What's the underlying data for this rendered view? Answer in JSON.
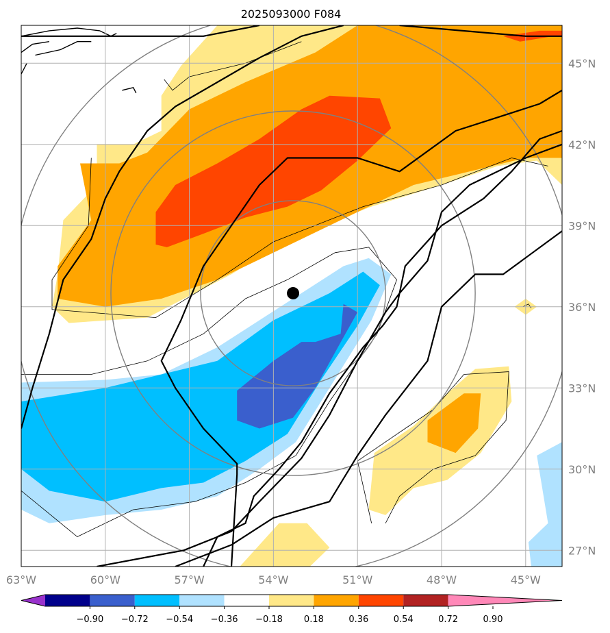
{
  "chart_data": {
    "type": "heatmap",
    "title": "2025093000 F084",
    "projection": "lat-lon map",
    "lon_range": [
      -63.0,
      -43.7
    ],
    "lat_range": [
      26.4,
      46.4
    ],
    "grid": true,
    "lon_ticks": [
      -63,
      -60,
      -57,
      -54,
      -51,
      -48,
      -45
    ],
    "lon_tick_labels": [
      "63°W",
      "60°W",
      "57°W",
      "54°W",
      "51°W",
      "48°W",
      "45°W"
    ],
    "lat_ticks": [
      27,
      30,
      33,
      36,
      39,
      42,
      45
    ],
    "lat_tick_labels": [
      "27°N",
      "30°N",
      "33°N",
      "36°N",
      "39°N",
      "42°N",
      "45°N"
    ],
    "storm_center": {
      "lon": -53.3,
      "lat": 36.5
    },
    "range_ring_radii_deg": [
      3.3,
      6.5,
      10
    ],
    "colorbar": {
      "levels": [
        -0.9,
        -0.72,
        -0.54,
        -0.36,
        -0.18,
        0.18,
        0.36,
        0.54,
        0.72,
        0.9
      ],
      "tick_labels": [
        "−0.90",
        "−0.72",
        "−0.54",
        "−0.36",
        "−0.18",
        "0.18",
        "0.36",
        "0.54",
        "0.72",
        "0.90"
      ],
      "colors": [
        "#9932cc",
        "#00008b",
        "#3a5fcd",
        "#00bfff",
        "#b0e2ff",
        "#ffffff",
        "#ffe888",
        "#ffa500",
        "#ff4500",
        "#b22222",
        "#ff88b8"
      ],
      "extend": "both"
    },
    "shaded_regions": [
      {
        "level": 0.18,
        "name": "north-light",
        "points": [
          [
            -60.3,
            42.0
          ],
          [
            -60.3,
            40.5
          ],
          [
            -61.5,
            39.2
          ],
          [
            -61.7,
            37.2
          ],
          [
            -61.9,
            36.0
          ],
          [
            -61.3,
            35.4
          ],
          [
            -58.5,
            35.6
          ],
          [
            -55.5,
            37.2
          ],
          [
            -53.5,
            38.5
          ],
          [
            -50.5,
            39.7
          ],
          [
            -48.0,
            40.5
          ],
          [
            -46.0,
            41.2
          ],
          [
            -44.6,
            41.4
          ],
          [
            -43.7,
            40.5
          ],
          [
            -43.7,
            46.4
          ],
          [
            -56.0,
            46.4
          ],
          [
            -57.3,
            44.9
          ],
          [
            -58.0,
            43.8
          ],
          [
            -58.0,
            42.5
          ],
          [
            -59.0,
            42.0
          ]
        ]
      },
      {
        "level": 0.18,
        "name": "north-east-light",
        "points": [
          [
            -52.0,
            46.4
          ],
          [
            -43.7,
            46.4
          ],
          [
            -43.7,
            44.5
          ],
          [
            -46.0,
            45.3
          ],
          [
            -49.0,
            46.0
          ]
        ]
      },
      {
        "level": 0.18,
        "name": "southeast-light",
        "points": [
          [
            -50.6,
            28.5
          ],
          [
            -50.4,
            30.6
          ],
          [
            -49.0,
            31.6
          ],
          [
            -47.8,
            32.8
          ],
          [
            -46.8,
            33.7
          ],
          [
            -45.6,
            33.8
          ],
          [
            -45.5,
            32.5
          ],
          [
            -46.6,
            30.6
          ],
          [
            -47.8,
            29.6
          ],
          [
            -49.0,
            29.3
          ],
          [
            -50.0,
            28.3
          ]
        ]
      },
      {
        "level": 0.18,
        "name": "south-light",
        "points": [
          [
            -55.2,
            26.4
          ],
          [
            -52.7,
            26.4
          ],
          [
            -52.0,
            27.1
          ],
          [
            -52.8,
            28.0
          ],
          [
            -53.8,
            28.0
          ]
        ]
      },
      {
        "level": 0.18,
        "name": "dot-light",
        "points": [
          [
            -45.0,
            35.7
          ],
          [
            -44.6,
            36.0
          ],
          [
            -45.0,
            36.3
          ],
          [
            -45.4,
            36.0
          ]
        ]
      },
      {
        "level": 0.36,
        "name": "north-mid",
        "points": [
          [
            -60.9,
            41.3
          ],
          [
            -60.5,
            39.2
          ],
          [
            -61.7,
            37.5
          ],
          [
            -61.7,
            36.3
          ],
          [
            -60.0,
            36.0
          ],
          [
            -58.0,
            36.3
          ],
          [
            -56.0,
            37.0
          ],
          [
            -54.0,
            38.0
          ],
          [
            -51.0,
            39.5
          ],
          [
            -49.0,
            40.5
          ],
          [
            -47.0,
            41.0
          ],
          [
            -45.0,
            41.5
          ],
          [
            -43.7,
            41.5
          ],
          [
            -43.7,
            46.4
          ],
          [
            -51.0,
            46.4
          ],
          [
            -52.5,
            45.4
          ],
          [
            -55.0,
            44.3
          ],
          [
            -57.0,
            43.3
          ],
          [
            -58.5,
            41.7
          ],
          [
            -59.5,
            41.3
          ]
        ]
      },
      {
        "level": 0.36,
        "name": "southeast-mid",
        "points": [
          [
            -48.5,
            31.0
          ],
          [
            -47.5,
            30.6
          ],
          [
            -46.7,
            31.5
          ],
          [
            -46.6,
            32.8
          ],
          [
            -47.2,
            32.8
          ],
          [
            -48.5,
            31.8
          ]
        ]
      },
      {
        "level": 0.54,
        "name": "north-high",
        "points": [
          [
            -58.2,
            38.3
          ],
          [
            -58.2,
            39.5
          ],
          [
            -57.5,
            40.5
          ],
          [
            -56.0,
            41.3
          ],
          [
            -54.5,
            42.2
          ],
          [
            -53.0,
            43.3
          ],
          [
            -52.0,
            43.8
          ],
          [
            -50.2,
            43.7
          ],
          [
            -49.8,
            42.6
          ],
          [
            -51.0,
            41.4
          ],
          [
            -52.3,
            40.3
          ],
          [
            -53.5,
            39.7
          ],
          [
            -55.0,
            39.3
          ],
          [
            -56.5,
            38.7
          ],
          [
            -57.8,
            38.2
          ]
        ]
      },
      {
        "level": 0.54,
        "name": "northeast-high",
        "points": [
          [
            -45.2,
            45.8
          ],
          [
            -44.0,
            46.0
          ],
          [
            -43.7,
            46.0
          ],
          [
            -43.7,
            46.2
          ],
          [
            -44.5,
            46.2
          ],
          [
            -45.8,
            46.0
          ]
        ]
      },
      {
        "level": -0.18,
        "name": "south-light-blue",
        "points": [
          [
            -63.0,
            33.2
          ],
          [
            -60.0,
            33.3
          ],
          [
            -58.0,
            33.5
          ],
          [
            -56.0,
            34.5
          ],
          [
            -54.5,
            35.5
          ],
          [
            -53.0,
            36.5
          ],
          [
            -51.5,
            37.5
          ],
          [
            -50.6,
            37.8
          ],
          [
            -49.8,
            37.2
          ],
          [
            -50.5,
            35.5
          ],
          [
            -52.0,
            33.0
          ],
          [
            -53.2,
            31.0
          ],
          [
            -54.5,
            30.0
          ],
          [
            -56.0,
            29.0
          ],
          [
            -58.0,
            28.5
          ],
          [
            -60.0,
            28.3
          ],
          [
            -62.0,
            28.0
          ],
          [
            -63.0,
            28.5
          ]
        ]
      },
      {
        "level": -0.18,
        "name": "east-light-blue",
        "points": [
          [
            -43.7,
            31.0
          ],
          [
            -43.7,
            26.4
          ],
          [
            -44.8,
            26.4
          ],
          [
            -44.9,
            27.3
          ],
          [
            -44.2,
            28.0
          ],
          [
            -44.6,
            30.5
          ]
        ]
      },
      {
        "level": -0.36,
        "name": "south-blue",
        "points": [
          [
            -63.0,
            32.5
          ],
          [
            -60.0,
            33.0
          ],
          [
            -58.0,
            33.5
          ],
          [
            -56.0,
            34.0
          ],
          [
            -54.0,
            35.5
          ],
          [
            -52.0,
            36.5
          ],
          [
            -50.8,
            37.3
          ],
          [
            -50.2,
            36.8
          ],
          [
            -51.0,
            35.3
          ],
          [
            -52.3,
            33.3
          ],
          [
            -53.5,
            31.3
          ],
          [
            -55.0,
            30.3
          ],
          [
            -56.5,
            29.5
          ],
          [
            -58.0,
            29.3
          ],
          [
            -60.0,
            28.8
          ],
          [
            -62.0,
            29.2
          ],
          [
            -63.0,
            30.0
          ]
        ]
      },
      {
        "level": -0.54,
        "name": "south-dark-blue",
        "points": [
          [
            -55.3,
            32.9
          ],
          [
            -54.0,
            34.0
          ],
          [
            -53.0,
            34.7
          ],
          [
            -52.5,
            34.7
          ],
          [
            -51.6,
            35.0
          ],
          [
            -51.5,
            36.1
          ],
          [
            -51.0,
            35.8
          ],
          [
            -51.7,
            34.5
          ],
          [
            -52.5,
            33.0
          ],
          [
            -53.3,
            31.9
          ],
          [
            -54.5,
            31.5
          ],
          [
            -55.3,
            31.8
          ]
        ]
      }
    ],
    "thick_contours": [
      [
        [
          -60.3,
          26.4
        ],
        [
          -57.2,
          27.0
        ],
        [
          -55.5,
          27.7
        ],
        [
          -54.5,
          28.8
        ],
        [
          -53.0,
          30.4
        ],
        [
          -52.0,
          32.0
        ],
        [
          -51.0,
          34.0
        ],
        [
          -50.0,
          35.8
        ],
        [
          -49.5,
          36.5
        ],
        [
          -48.5,
          37.7
        ],
        [
          -48.0,
          39.5
        ],
        [
          -47.0,
          40.5
        ],
        [
          -45.0,
          41.5
        ],
        [
          -43.7,
          42.0
        ]
      ],
      [
        [
          -57.5,
          26.4
        ],
        [
          -55.5,
          27.2
        ],
        [
          -54.0,
          28.2
        ],
        [
          -52.0,
          28.8
        ],
        [
          -51.0,
          30.5
        ],
        [
          -50.0,
          32.0
        ],
        [
          -48.5,
          34.0
        ],
        [
          -48.0,
          36.0
        ],
        [
          -46.8,
          37.2
        ],
        [
          -45.8,
          37.2
        ],
        [
          -43.7,
          38.8
        ]
      ],
      [
        [
          -63.0,
          31.5
        ],
        [
          -62.6,
          33.0
        ],
        [
          -62.0,
          35.0
        ],
        [
          -61.5,
          37.0
        ],
        [
          -60.5,
          38.5
        ],
        [
          -60.0,
          40.0
        ],
        [
          -59.5,
          41.0
        ],
        [
          -58.5,
          42.5
        ],
        [
          -57.5,
          43.4
        ],
        [
          -56.0,
          44.3
        ],
        [
          -54.5,
          45.2
        ],
        [
          -53.0,
          46.0
        ],
        [
          -51.5,
          46.4
        ]
      ],
      [
        [
          -56.5,
          26.4
        ],
        [
          -56.0,
          27.5
        ],
        [
          -55.0,
          28.0
        ],
        [
          -54.7,
          29.0
        ],
        [
          -53.8,
          30.0
        ],
        [
          -53.0,
          31.0
        ],
        [
          -52.5,
          31.9
        ],
        [
          -52.0,
          32.8
        ],
        [
          -51.5,
          33.5
        ],
        [
          -50.8,
          34.5
        ],
        [
          -50.1,
          35.3
        ],
        [
          -49.6,
          36.0
        ],
        [
          -49.3,
          37.5
        ],
        [
          -48.0,
          39.0
        ],
        [
          -46.5,
          40.0
        ],
        [
          -45.5,
          41.0
        ],
        [
          -44.5,
          42.2
        ],
        [
          -43.7,
          42.5
        ]
      ],
      [
        [
          -55.5,
          26.4
        ],
        [
          -55.3,
          29.8
        ],
        [
          -55.3,
          30.2
        ],
        [
          -56.5,
          31.5
        ],
        [
          -57.5,
          33.0
        ],
        [
          -58.0,
          34.0
        ],
        [
          -57.3,
          35.5
        ],
        [
          -56.5,
          37.5
        ],
        [
          -55.5,
          39.0
        ],
        [
          -54.5,
          40.5
        ],
        [
          -53.5,
          41.5
        ],
        [
          -51.0,
          41.5
        ],
        [
          -49.5,
          41.0
        ],
        [
          -47.5,
          42.5
        ],
        [
          -46.0,
          43.0
        ],
        [
          -44.5,
          43.5
        ],
        [
          -43.7,
          44.0
        ]
      ],
      [
        [
          -63.0,
          46.0
        ],
        [
          -56.5,
          46.0
        ],
        [
          -54.5,
          46.4
        ]
      ],
      [
        [
          -49.5,
          46.4
        ],
        [
          -45.0,
          46.0
        ],
        [
          -43.7,
          46.0
        ]
      ]
    ],
    "thin_contours": [
      [
        [
          -63.0,
          33.5
        ],
        [
          -60.5,
          33.5
        ],
        [
          -58.5,
          34.0
        ],
        [
          -56.5,
          35.0
        ],
        [
          -55.0,
          36.3
        ],
        [
          -53.5,
          37.0
        ],
        [
          -51.8,
          38.0
        ],
        [
          -50.6,
          38.2
        ],
        [
          -49.6,
          37.0
        ],
        [
          -50.3,
          35.0
        ],
        [
          -52.0,
          32.5
        ],
        [
          -53.2,
          30.5
        ],
        [
          -55.0,
          29.5
        ],
        [
          -56.8,
          28.8
        ],
        [
          -59.0,
          28.5
        ],
        [
          -61.0,
          27.5
        ],
        [
          -63.0,
          29.2
        ]
      ],
      [
        [
          -60.5,
          41.5
        ],
        [
          -60.6,
          39.0
        ],
        [
          -61.9,
          37.0
        ],
        [
          -61.9,
          35.9
        ],
        [
          -58.2,
          35.6
        ],
        [
          -56.0,
          37.0
        ],
        [
          -54.0,
          38.4
        ],
        [
          -50.8,
          39.7
        ],
        [
          -48.0,
          40.5
        ],
        [
          -45.5,
          41.5
        ],
        [
          -44.2,
          41.2
        ]
      ],
      [
        [
          -57.9,
          44.4
        ],
        [
          -57.6,
          44.0
        ],
        [
          -57.0,
          44.5
        ],
        [
          -55.0,
          45.0
        ],
        [
          -53.0,
          45.8
        ]
      ],
      [
        [
          -50.5,
          28.0
        ],
        [
          -51.0,
          30.3
        ],
        [
          -49.3,
          31.5
        ],
        [
          -48.3,
          32.2
        ],
        [
          -47.2,
          33.5
        ],
        [
          -45.6,
          33.6
        ],
        [
          -45.7,
          31.8
        ],
        [
          -46.8,
          30.5
        ],
        [
          -48.3,
          30.0
        ],
        [
          -49.5,
          29.0
        ],
        [
          -50.0,
          28.0
        ]
      ],
      [
        [
          -45.1,
          36.0
        ],
        [
          -44.9,
          36.1
        ],
        [
          -44.8,
          35.95
        ]
      ]
    ],
    "coastline_segments": [
      [
        [
          -63.0,
          46.0
        ],
        [
          -62.0,
          46.2
        ],
        [
          -61.0,
          46.3
        ],
        [
          -60.2,
          46.2
        ],
        [
          -59.8,
          46.0
        ],
        [
          -59.6,
          46.1
        ]
      ],
      [
        [
          -62.5,
          45.3
        ],
        [
          -61.6,
          45.5
        ],
        [
          -61.0,
          45.8
        ],
        [
          -60.5,
          45.8
        ]
      ],
      [
        [
          -63.0,
          45.4
        ],
        [
          -62.6,
          45.7
        ],
        [
          -62.0,
          45.8
        ]
      ],
      [
        [
          -59.4,
          44.0
        ],
        [
          -59.0,
          44.1
        ],
        [
          -58.9,
          43.9
        ]
      ],
      [
        [
          -63.0,
          44.6
        ],
        [
          -62.8,
          45.0
        ]
      ]
    ]
  }
}
